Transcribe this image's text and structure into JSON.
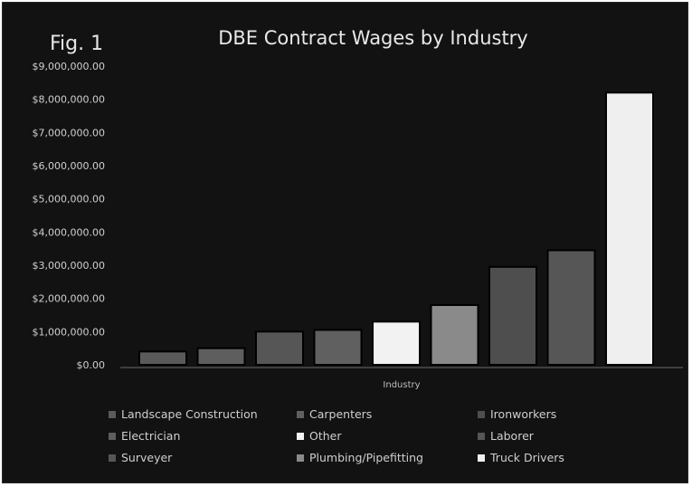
{
  "figure_label": "Fig. 1",
  "chart_data": {
    "type": "bar",
    "title": "DBE Contract Wages by Industry",
    "xlabel": "Industry",
    "ylabel": "",
    "ylim": [
      0,
      9000000
    ],
    "yticks": [
      "$0.00",
      "$1,000,000.00",
      "$2,000,000.00",
      "$3,000,000.00",
      "$4,000,000.00",
      "$5,000,000.00",
      "$6,000,000.00",
      "$7,000,000.00",
      "$8,000,000.00",
      "$9,000,000.00"
    ],
    "ytick_values": [
      0,
      1000000,
      2000000,
      3000000,
      4000000,
      5000000,
      6000000,
      7000000,
      8000000,
      9000000
    ],
    "grid": false,
    "legend_position": "bottom",
    "series": [
      {
        "name": "Landscape Construction",
        "value": 400000,
        "color": "#5a5a5a"
      },
      {
        "name": "Electrician",
        "value": 500000,
        "color": "#5e5e5e"
      },
      {
        "name": "Surveyer",
        "value": 1000000,
        "color": "#565656"
      },
      {
        "name": "Carpenters",
        "value": 1050000,
        "color": "#606060"
      },
      {
        "name": "Other",
        "value": 1300000,
        "color": "#f2f2f2"
      },
      {
        "name": "Plumbing/Pipefitting",
        "value": 1800000,
        "color": "#8a8a8a"
      },
      {
        "name": "Ironworkers",
        "value": 2950000,
        "color": "#4e4e4e"
      },
      {
        "name": "Laborer",
        "value": 3450000,
        "color": "#565656"
      },
      {
        "name": "Truck Drivers",
        "value": 8200000,
        "color": "#efefef"
      }
    ],
    "legend_order": [
      0,
      3,
      6,
      1,
      4,
      7,
      2,
      5,
      8
    ]
  }
}
